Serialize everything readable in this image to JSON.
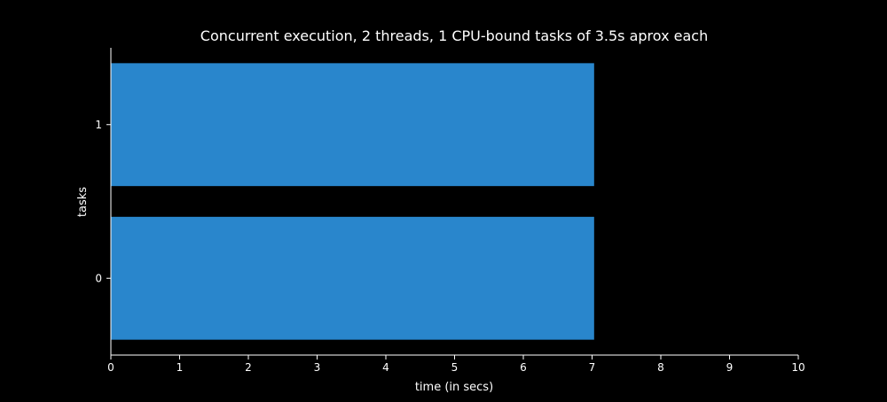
{
  "chart_data": {
    "type": "bar",
    "orientation": "horizontal",
    "title": "Concurrent execution, 2 threads, 1 CPU-bound tasks of 3.5s aprox each",
    "xlabel": "time (in secs)",
    "ylabel": "tasks",
    "categories": [
      "0",
      "1"
    ],
    "bars": [
      {
        "task": "0",
        "start": 0,
        "end": 7.03
      },
      {
        "task": "1",
        "start": 0,
        "end": 7.03
      }
    ],
    "xlim": [
      0,
      10
    ],
    "ylim": [
      -0.5,
      1.5
    ],
    "xticks": [
      "0",
      "1",
      "2",
      "3",
      "4",
      "5",
      "6",
      "7",
      "8",
      "9",
      "10"
    ],
    "yticks": [
      "0",
      "1"
    ],
    "grid": false,
    "legend": "none"
  },
  "colors": {
    "background": "#000000",
    "bar": "#2986cc",
    "axis": "#ffffff",
    "text": "#ffffff"
  }
}
